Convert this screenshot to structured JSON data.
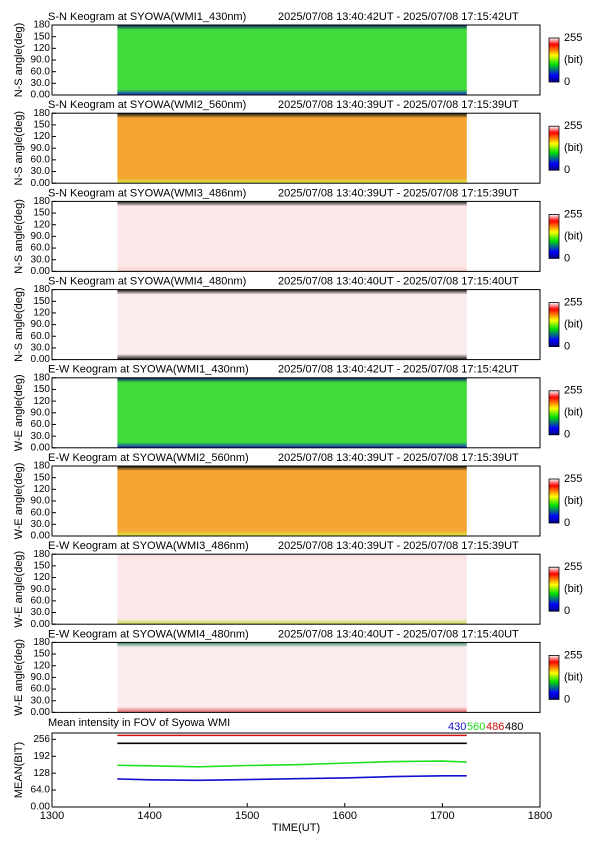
{
  "chart_data": [
    {
      "type": "keogram",
      "title": "S-N Keogram at SYOWA(WMI1_430nm)",
      "subtitle": "2025/07/08 13:40:42UT - 2025/07/08 17:15:42UT",
      "y_label": "N-S angle(deg)",
      "xlim": [
        1300,
        1800
      ],
      "x_span": [
        1367,
        1725
      ],
      "ylim": [
        0,
        180
      ],
      "yticks": [
        {
          "value": 0,
          "label": "0.00"
        },
        {
          "value": 30,
          "label": "30.0"
        },
        {
          "value": 60,
          "label": "60.0"
        },
        {
          "value": 90,
          "label": "90.0"
        },
        120,
        150,
        180
      ],
      "color": "#40dc3c",
      "edge_colors": [
        "#1028c8",
        "#0c1a70"
      ],
      "colorbar_ticks": [
        0,
        255
      ],
      "colorbar_label": "(bit)"
    },
    {
      "type": "keogram",
      "title": "S-N Keogram at SYOWA(WMI2_560nm)",
      "subtitle": "2025/07/08 13:40:39UT - 2025/07/08 17:15:39UT",
      "y_label": "N-S angle(deg)",
      "xlim": [
        1300,
        1800
      ],
      "x_span": [
        1367,
        1725
      ],
      "ylim": [
        0,
        180
      ],
      "yticks": [
        {
          "value": 0,
          "label": "0.00"
        },
        {
          "value": 30,
          "label": "30.0"
        },
        {
          "value": 60,
          "label": "60.0"
        },
        {
          "value": 90,
          "label": "90.0"
        },
        120,
        150,
        180
      ],
      "color": "#f6a432",
      "edge_colors": [
        "#d8e840",
        "#101010"
      ],
      "colorbar_ticks": [
        0,
        255
      ],
      "colorbar_label": "(bit)"
    },
    {
      "type": "keogram",
      "title": "S-N Keogram at SYOWA(WMI3_486nm)",
      "subtitle": "2025/07/08 13:40:39UT - 2025/07/08 17:15:39UT",
      "y_label": "N-S angle(deg)",
      "xlim": [
        1300,
        1800
      ],
      "x_span": [
        1367,
        1725
      ],
      "ylim": [
        0,
        180
      ],
      "yticks": [
        {
          "value": 0,
          "label": "0.00"
        },
        {
          "value": 30,
          "label": "30.0"
        },
        {
          "value": 60,
          "label": "60.0"
        },
        {
          "value": 90,
          "label": "90.0"
        },
        120,
        150,
        180
      ],
      "color": "#fce8e8",
      "edge_colors": [
        "#f4d0d0",
        "#202020"
      ],
      "colorbar_ticks": [
        0,
        255
      ],
      "colorbar_label": "(bit)"
    },
    {
      "type": "keogram",
      "title": "S-N Keogram at SYOWA(WMI4_480nm)",
      "subtitle": "2025/07/08 13:40:40UT - 2025/07/08 17:15:40UT",
      "y_label": "N-S angle(deg)",
      "xlim": [
        1300,
        1800
      ],
      "x_span": [
        1367,
        1725
      ],
      "ylim": [
        0,
        180
      ],
      "yticks": [
        {
          "value": 0,
          "label": "0.00"
        },
        {
          "value": 30,
          "label": "30.0"
        },
        {
          "value": 60,
          "label": "60.0"
        },
        {
          "value": 90,
          "label": "90.0"
        },
        120,
        150,
        180
      ],
      "color": "#fcecec",
      "edge_colors": [
        "#101010",
        "#101010"
      ],
      "colorbar_ticks": [
        0,
        255
      ],
      "colorbar_label": "(bit)"
    },
    {
      "type": "keogram",
      "title": "E-W Keogram at SYOWA(WMI1_430nm)",
      "subtitle": "2025/07/08 13:40:42UT - 2025/07/08 17:15:42UT",
      "y_label": "W-E angle(deg)",
      "xlim": [
        1300,
        1800
      ],
      "x_span": [
        1367,
        1725
      ],
      "ylim": [
        0,
        180
      ],
      "yticks": [
        {
          "value": 0,
          "label": "0.00"
        },
        {
          "value": 30,
          "label": "30.0"
        },
        {
          "value": 60,
          "label": "60.0"
        },
        {
          "value": 90,
          "label": "90.0"
        },
        120,
        150,
        180
      ],
      "color": "#40dc3c",
      "edge_colors": [
        "#1028c8",
        "#0c1a70"
      ],
      "colorbar_ticks": [
        0,
        255
      ],
      "colorbar_label": "(bit)"
    },
    {
      "type": "keogram",
      "title": "E-W Keogram at SYOWA(WMI2_560nm)",
      "subtitle": "2025/07/08 13:40:39UT - 2025/07/08 17:15:39UT",
      "y_label": "W-E angle(deg)",
      "xlim": [
        1300,
        1800
      ],
      "x_span": [
        1367,
        1725
      ],
      "ylim": [
        0,
        180
      ],
      "yticks": [
        {
          "value": 0,
          "label": "0.00"
        },
        {
          "value": 30,
          "label": "30.0"
        },
        {
          "value": 60,
          "label": "60.0"
        },
        {
          "value": 90,
          "label": "90.0"
        },
        120,
        150,
        180
      ],
      "color": "#f6a432",
      "edge_colors": [
        "#d8e840",
        "#101010"
      ],
      "colorbar_ticks": [
        0,
        255
      ],
      "colorbar_label": "(bit)"
    },
    {
      "type": "keogram",
      "title": "E-W Keogram at SYOWA(WMI3_486nm)",
      "subtitle": "2025/07/08 13:40:39UT - 2025/07/08 17:15:39UT",
      "y_label": "W-E angle(deg)",
      "xlim": [
        1300,
        1800
      ],
      "x_span": [
        1367,
        1725
      ],
      "ylim": [
        0,
        180
      ],
      "yticks": [
        {
          "value": 0,
          "label": "0.00"
        },
        {
          "value": 30,
          "label": "30.0"
        },
        {
          "value": 60,
          "label": "60.0"
        },
        {
          "value": 90,
          "label": "90.0"
        },
        120,
        150,
        180
      ],
      "color": "#fce8e8",
      "edge_colors": [
        "#c8d850",
        "#f8dede"
      ],
      "colorbar_ticks": [
        0,
        255
      ],
      "colorbar_label": "(bit)"
    },
    {
      "type": "keogram",
      "title": "E-W Keogram at SYOWA(WMI4_480nm)",
      "subtitle": "2025/07/08 13:40:40UT - 2025/07/08 17:15:40UT",
      "y_label": "W-E angle(deg)",
      "xlim": [
        1300,
        1800
      ],
      "x_span": [
        1367,
        1725
      ],
      "ylim": [
        0,
        180
      ],
      "yticks": [
        {
          "value": 0,
          "label": "0.00"
        },
        {
          "value": 30,
          "label": "30.0"
        },
        {
          "value": 60,
          "label": "60.0"
        },
        {
          "value": 90,
          "label": "90.0"
        },
        120,
        150,
        180
      ],
      "color": "#fcecec",
      "edge_colors": [
        "#e06060",
        "#308868"
      ],
      "colorbar_ticks": [
        0,
        255
      ],
      "colorbar_label": "(bit)"
    },
    {
      "type": "line",
      "title": "Mean intensity in FOV of Syowa WMI",
      "x_label": "TIME(UT)",
      "y_label": "MEAN(BIT)",
      "x": [
        1367,
        1400,
        1450,
        1500,
        1550,
        1600,
        1650,
        1700,
        1725
      ],
      "series": [
        {
          "name": "430",
          "color": "#1010d0",
          "values": [
            106,
            103,
            101,
            104,
            107,
            110,
            115,
            118,
            118
          ]
        },
        {
          "name": "560",
          "color": "#20e020",
          "values": [
            158,
            156,
            152,
            157,
            160,
            166,
            172,
            174,
            170
          ]
        },
        {
          "name": "486",
          "color": "#d01010",
          "values": [
            271,
            271,
            271,
            271,
            271,
            271,
            271,
            271,
            271
          ]
        },
        {
          "name": "480",
          "color": "#000000",
          "values": [
            241,
            241,
            241,
            241,
            241,
            241,
            241,
            241,
            241
          ]
        }
      ],
      "xlim": [
        1300,
        1800
      ],
      "xticks": [
        1300,
        1400,
        1500,
        1600,
        1700,
        1800
      ],
      "ylim": [
        0,
        280
      ],
      "yticks": [
        {
          "value": 0,
          "label": "0.00"
        },
        {
          "value": 64,
          "label": "64.0"
        },
        128,
        192,
        256
      ]
    }
  ]
}
